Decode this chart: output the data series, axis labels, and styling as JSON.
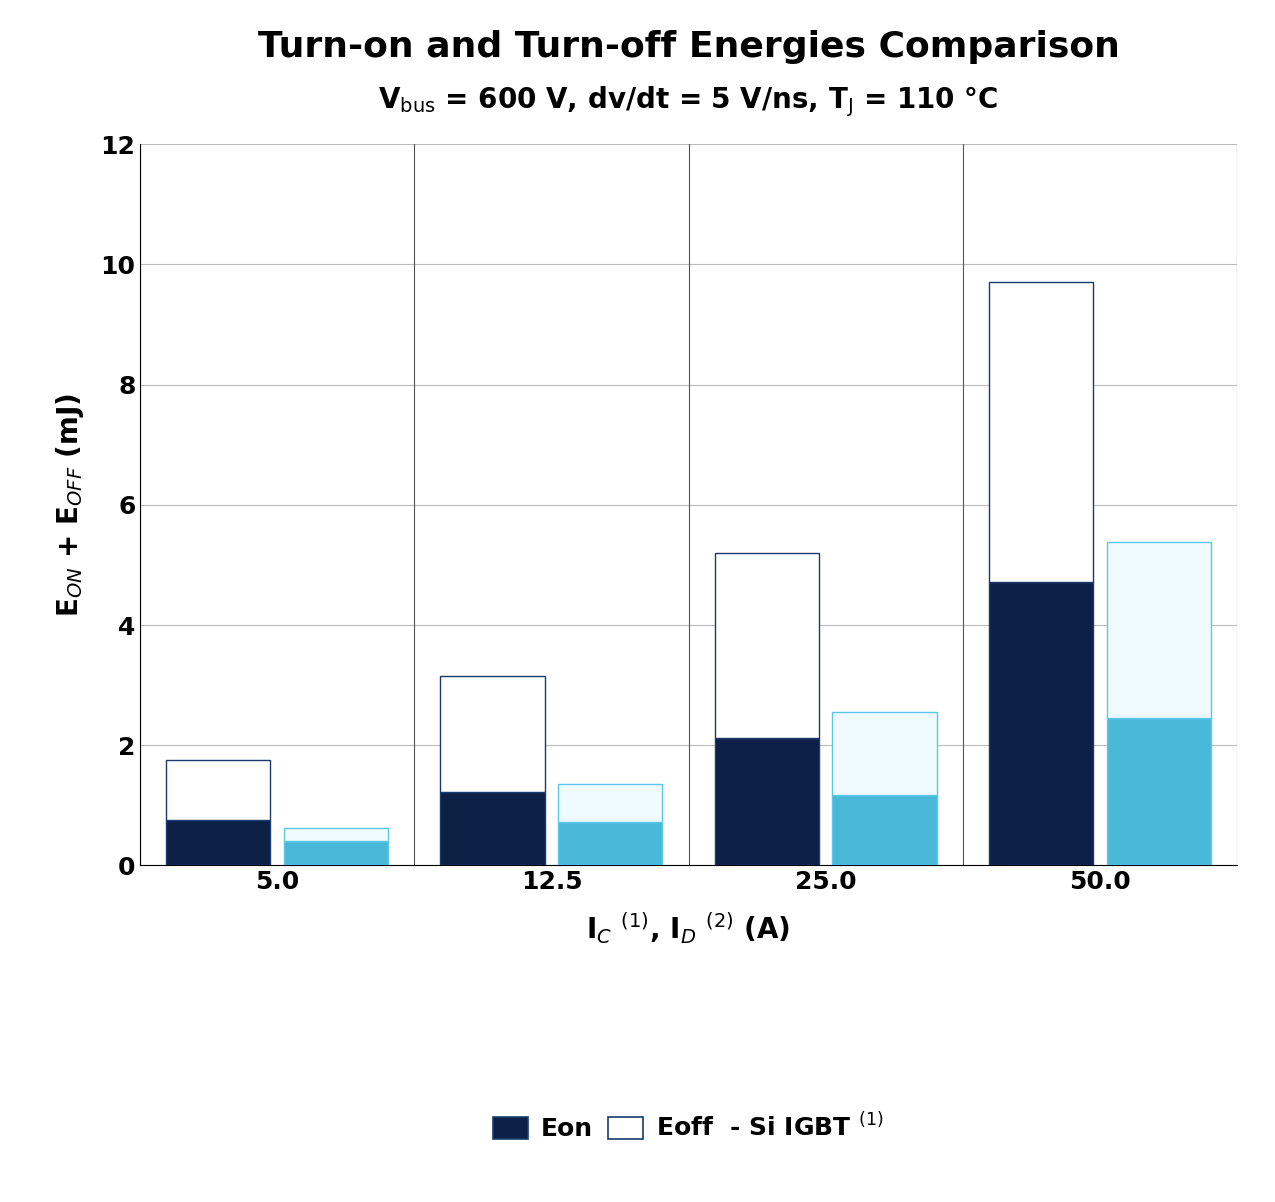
{
  "title": "Turn-on and Turn-off Energies Comparison",
  "subtitle": "V$_\\mathrm{bus}$ = 600 V, dv/dt = 5 V/ns, T$_\\mathrm{J}$ = 110 °C",
  "xlabel": "I$_C$ $^{(1)}$, I$_D$ $^{(2)}$ (A)",
  "ylabel": "E$_{ON}$ + E$_{OFF}$ (mJ)",
  "categories": [
    "5.0",
    "12.5",
    "25.0",
    "50.0"
  ],
  "igbt_eon": [
    0.75,
    1.22,
    2.12,
    4.72
  ],
  "igbt_eoff": [
    1.0,
    1.93,
    3.08,
    4.98
  ],
  "sic_eon": [
    0.4,
    0.72,
    1.18,
    2.45
  ],
  "sic_eoff": [
    0.22,
    0.63,
    1.38,
    2.93
  ],
  "igbt_eon_color": "#0d2147",
  "igbt_eoff_color": "#ffffff",
  "igbt_border_color": "#1a3a6e",
  "sic_eon_color": "#4ab8d8",
  "sic_eoff_color": "#f0fbff",
  "sic_border_color": "#5bc8e8",
  "ylim": [
    0,
    12
  ],
  "yticks": [
    0,
    2,
    4,
    6,
    8,
    10,
    12
  ],
  "bar_width": 0.38,
  "group_positions": [
    0.0,
    1.0,
    2.0,
    3.0
  ],
  "bar_gap": 0.05,
  "background_color": "#ffffff",
  "grid_color": "#bbbbbb",
  "vline_color": "#555555",
  "title_fontsize": 26,
  "subtitle_fontsize": 20,
  "xlabel_fontsize": 20,
  "ylabel_fontsize": 20,
  "tick_fontsize": 18,
  "legend_fontsize": 18
}
